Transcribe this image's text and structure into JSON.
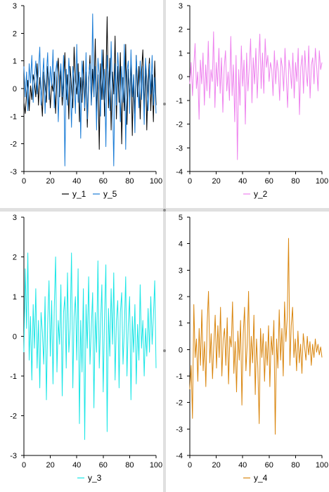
{
  "charts": [
    {
      "type": "line",
      "xlim": [
        0,
        100
      ],
      "ylim": [
        -3,
        3
      ],
      "xticks": [
        0,
        20,
        40,
        60,
        80,
        100
      ],
      "yticks": [
        -3,
        -2,
        -1,
        0,
        1,
        2,
        3
      ],
      "legend_placement": "bottom",
      "series": [
        {
          "name": "y_1",
          "color": "#000000",
          "y": [
            -0.5,
            -0.9,
            -0.2,
            0.3,
            -0.8,
            0.1,
            -0.4,
            0.5,
            0.2,
            -0.3,
            0.9,
            -0.6,
            0.4,
            -0.2,
            -1.0,
            0.6,
            0.1,
            -0.5,
            0.8,
            0.3,
            -0.7,
            0.2,
            -0.1,
            0.6,
            -0.9,
            0.4,
            1.1,
            -0.3,
            0.7,
            -0.6,
            0.2,
            1.3,
            -0.4,
            0.5,
            -1.1,
            0.8,
            0.0,
            -0.7,
            1.5,
            0.3,
            -0.2,
            0.9,
            -1.2,
            0.4,
            -0.5,
            1.0,
            -0.8,
            0.6,
            -1.4,
            0.2,
            1.2,
            -0.6,
            0.7,
            -0.3,
            1.8,
            -0.9,
            0.5,
            -2.2,
            0.9,
            -0.4,
            1.4,
            -1.0,
            0.3,
            2.6,
            -0.7,
            1.1,
            -1.5,
            0.6,
            -0.2,
            1.9,
            -1.1,
            0.8,
            -0.5,
            1.3,
            -2.0,
            0.4,
            -0.8,
            1.6,
            -1.3,
            0.7,
            -0.4,
            1.0,
            -1.7,
            0.5,
            -0.9,
            1.2,
            -0.3,
            0.8,
            -1.1,
            0.6,
            1.4,
            -0.7,
            0.9,
            -1.5,
            0.3,
            1.1,
            -0.8,
            0.5,
            -1.2,
            1.0,
            -0.6
          ]
        },
        {
          "name": "y_5",
          "color": "#1a7cd6",
          "y": [
            0.8,
            -0.3,
            0.6,
            -0.8,
            0.9,
            0.2,
            1.2,
            -0.5,
            0.4,
            1.0,
            -0.2,
            0.7,
            1.5,
            -0.6,
            0.3,
            1.1,
            -0.9,
            0.5,
            1.3,
            -0.4,
            0.8,
            0.1,
            1.4,
            -0.7,
            0.6,
            1.0,
            -1.2,
            0.4,
            0.9,
            -0.3,
            1.2,
            -2.8,
            0.7,
            -0.6,
            1.1,
            0.2,
            -1.4,
            0.8,
            0.3,
            -0.9,
            1.6,
            -0.5,
            0.6,
            -1.8,
            1.0,
            0.2,
            -0.7,
            1.3,
            -1.1,
            0.4,
            0.9,
            -0.6,
            2.7,
            -0.3,
            0.8,
            -1.5,
            1.1,
            0.5,
            -1.0,
            1.4,
            -0.4,
            0.7,
            -2.1,
            1.2,
            0.3,
            -0.8,
            1.7,
            -0.2,
            -2.8,
            0.9,
            -0.6,
            1.3,
            0.4,
            -1.2,
            0.8,
            -0.5,
            1.6,
            -2.2,
            0.6,
            1.0,
            -0.9,
            1.4,
            -0.3,
            0.5,
            -1.6,
            1.2,
            0.2,
            -0.7,
            1.0,
            -0.4,
            0.8,
            -1.3,
            1.1,
            0.3,
            -0.8,
            0.9,
            -0.2,
            1.2,
            -0.6,
            0.4,
            -0.9
          ]
        }
      ]
    },
    {
      "type": "line",
      "xlim": [
        0,
        100
      ],
      "ylim": [
        -4,
        3
      ],
      "xticks": [
        0,
        20,
        40,
        60,
        80,
        100
      ],
      "yticks": [
        -4,
        -3,
        -2,
        -1,
        0,
        1,
        2,
        3
      ],
      "legend_placement": "bottom",
      "series": [
        {
          "name": "y_2",
          "color": "#ee82ee",
          "y": [
            -0.3,
            0.6,
            -0.8,
            0.4,
            1.4,
            -0.5,
            0.2,
            -1.8,
            0.7,
            -0.3,
            1.0,
            -1.2,
            0.5,
            -0.6,
            1.5,
            -0.9,
            0.3,
            -0.2,
            1.9,
            -1.3,
            0.6,
            -0.4,
            1.2,
            -0.7,
            0.8,
            -1.5,
            0.4,
            1.1,
            -0.6,
            0.2,
            -1.0,
            1.7,
            -0.8,
            0.5,
            -1.9,
            0.9,
            -3.5,
            0.3,
            -1.2,
            1.3,
            -0.4,
            0.7,
            -2.0,
            1.0,
            -0.6,
            0.4,
            1.6,
            -1.1,
            0.8,
            -0.3,
            1.2,
            -0.9,
            0.6,
            1.8,
            -0.5,
            1.0,
            -0.7,
            1.6,
            0.4,
            0.9,
            -0.2,
            0.6,
            0.3,
            -0.8,
            1.1,
            -0.3,
            0.7,
            0.2,
            -1.0,
            0.8,
            0.4,
            -0.6,
            1.2,
            0.0,
            -1.3,
            0.7,
            0.3,
            -0.5,
            1.0,
            -0.9,
            0.6,
            -0.2,
            1.2,
            -1.6,
            0.4,
            0.9,
            -0.7,
            1.1,
            0.2,
            -0.4,
            1.3,
            -0.9,
            0.5,
            0.8,
            -0.3,
            1.2,
            0.4,
            -0.6,
            1.1,
            0.3,
            0.6
          ]
        }
      ]
    },
    {
      "type": "line",
      "xlim": [
        0,
        100
      ],
      "ylim": [
        -3,
        3
      ],
      "xticks": [
        0,
        20,
        40,
        60,
        80,
        100
      ],
      "yticks": [
        -3,
        -2,
        -1,
        0,
        1,
        2,
        3
      ],
      "legend_placement": "bottom",
      "series": [
        {
          "name": "y_3",
          "color": "#19e6e6",
          "y": [
            -0.4,
            1.7,
            0.2,
            2.1,
            -0.6,
            0.5,
            -1.1,
            0.8,
            -0.3,
            1.2,
            -0.8,
            0.4,
            -1.3,
            0.6,
            0.1,
            -0.7,
            1.0,
            -1.6,
            0.3,
            1.4,
            -0.5,
            0.9,
            -1.2,
            0.7,
            2.0,
            -0.9,
            0.4,
            -0.2,
            1.3,
            -1.5,
            0.6,
            1.0,
            -0.8,
            1.6,
            -0.4,
            0.2,
            2.1,
            -1.3,
            0.5,
            1.0,
            -0.6,
            1.7,
            -2.2,
            0.4,
            -0.9,
            1.2,
            -2.6,
            0.8,
            -0.3,
            1.5,
            -0.7,
            0.2,
            1.1,
            -1.8,
            0.6,
            -0.4,
            1.9,
            -0.8,
            0.3,
            1.3,
            -1.4,
            0.5,
            1.8,
            -2.4,
            0.7,
            -0.5,
            1.2,
            -0.2,
            1.6,
            -1.1,
            0.4,
            0.9,
            -1.3,
            0.6,
            1.1,
            -0.7,
            0.2,
            1.5,
            -1.0,
            0.3,
            1.0,
            -1.6,
            0.5,
            -0.4,
            0.8,
            -1.2,
            0.3,
            -0.6,
            1.3,
            -0.3,
            0.4,
            -1.0,
            0.2,
            -0.5,
            0.7,
            -0.4,
            1.0,
            -0.2,
            0.5,
            1.4,
            -0.8
          ]
        }
      ]
    },
    {
      "type": "line",
      "xlim": [
        0,
        100
      ],
      "ylim": [
        -4,
        5
      ],
      "xticks": [
        0,
        20,
        40,
        60,
        80,
        100
      ],
      "yticks": [
        -4,
        -3,
        -2,
        -1,
        0,
        1,
        2,
        3,
        4,
        5
      ],
      "legend_placement": "bottom",
      "series": [
        {
          "name": "y_4",
          "color": "#d9850d",
          "y": [
            -1.5,
            -0.6,
            -2.6,
            1.7,
            -0.3,
            0.4,
            -1.2,
            0.8,
            -0.6,
            1.5,
            -0.8,
            0.3,
            -1.4,
            1.0,
            2.2,
            -0.5,
            0.6,
            -1.1,
            0.2,
            1.3,
            -0.7,
            0.9,
            -0.3,
            1.6,
            -1.0,
            0.4,
            0.8,
            -0.6,
            1.2,
            -1.3,
            0.5,
            0.1,
            1.8,
            -0.9,
            0.3,
            -1.6,
            0.7,
            -0.4,
            1.1,
            -2.1,
            0.6,
            1.6,
            -0.8,
            0.2,
            2.2,
            -1.0,
            0.5,
            -0.5,
            1.3,
            -1.7,
            0.4,
            -0.7,
            -2.8,
            0.8,
            -0.3,
            0.6,
            -1.2,
            0.3,
            -0.6,
            0.9,
            -1.4,
            0.5,
            -0.2,
            1.1,
            -3.2,
            0.4,
            -0.7,
            1.5,
            -0.4,
            0.8,
            -1.0,
            1.8,
            0.3,
            1.2,
            4.2,
            -0.6,
            0.9,
            1.6,
            -0.3,
            0.4,
            -0.8,
            0.7,
            -0.5,
            0.2,
            -0.9,
            0.6,
            0.1,
            -0.4,
            0.5,
            -0.2,
            0.3,
            -0.6,
            0.2,
            -0.3,
            0.4,
            -0.1,
            0.2,
            -0.2,
            0.1,
            -0.3
          ]
        }
      ]
    }
  ]
}
